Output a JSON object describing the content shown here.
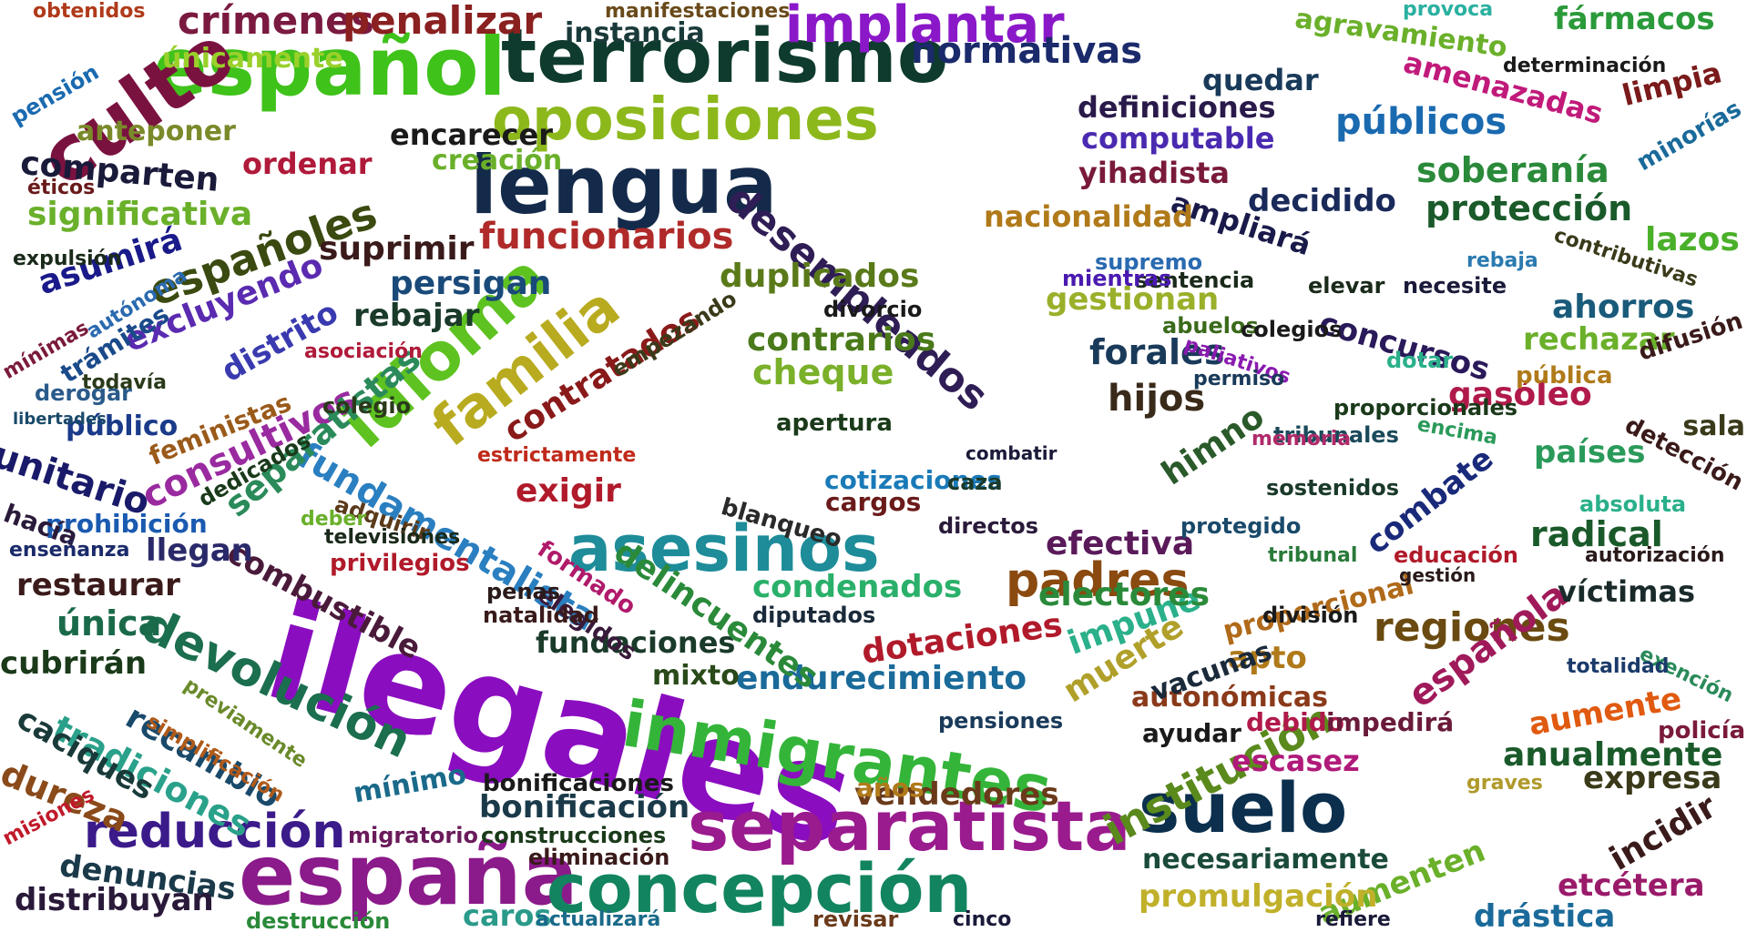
{
  "words": [
    {
      "text": "ilegales",
      "color": "#8a0dbf"
    },
    {
      "text": "terrorismo",
      "color": "#0e3b2e"
    },
    {
      "text": "español",
      "color": "#3fc21a"
    },
    {
      "text": "oposiciones",
      "color": "#8db81c"
    },
    {
      "text": "lengua",
      "color": "#142a4a"
    },
    {
      "text": "separatista",
      "color": "#9a1b8e"
    },
    {
      "text": "españa",
      "color": "#8b1a8a"
    },
    {
      "text": "concepción",
      "color": "#12845f"
    },
    {
      "text": "inmigrantes",
      "color": "#34b53a"
    },
    {
      "text": "asesinos",
      "color": "#1e8c99"
    },
    {
      "text": "suelo",
      "color": "#0b2f4d"
    },
    {
      "text": "culto",
      "color": "#7a1240"
    },
    {
      "text": "idioma",
      "color": "#5ec220"
    },
    {
      "text": "familia",
      "color": "#b8ab20"
    },
    {
      "text": "desempleados",
      "color": "#2f1d55"
    },
    {
      "text": "fundamentalista",
      "color": "#2a7fc0"
    },
    {
      "text": "devolución",
      "color": "#1b6e4e"
    },
    {
      "text": "institución",
      "color": "#5a8a1c"
    },
    {
      "text": "padres",
      "color": "#8a4a10"
    },
    {
      "text": "reducción",
      "color": "#3b1a8a"
    },
    {
      "text": "implantar",
      "color": "#8a18c8"
    },
    {
      "text": "crímenes",
      "color": "#7a1a40"
    },
    {
      "text": "penalizar",
      "color": "#8a2020"
    },
    {
      "text": "normativas",
      "color": "#1a2a6a"
    },
    {
      "text": "funcionarios",
      "color": "#b02a2a"
    },
    {
      "text": "españoles",
      "color": "#3a4a10"
    },
    {
      "text": "contratados",
      "color": "#8a1a1a"
    },
    {
      "text": "inmigrantes",
      "color": "#34b53a"
    },
    {
      "text": "combustible",
      "color": "#4a1a3a"
    },
    {
      "text": "tradiciones",
      "color": "#2aa18a"
    },
    {
      "text": "recambio",
      "color": "#1a4a6a"
    },
    {
      "text": "caciques",
      "color": "#1a3a3a"
    },
    {
      "text": "dureza",
      "color": "#8a4a1a"
    },
    {
      "text": "denuncias",
      "color": "#1a3a4a"
    },
    {
      "text": "distribuyan",
      "color": "#2a1a3a"
    },
    {
      "text": "consultivos",
      "color": "#9a2aa0"
    },
    {
      "text": "unitario",
      "color": "#1a1a6a"
    },
    {
      "text": "separatistas",
      "color": "#2a8a5a"
    },
    {
      "text": "cotizaciones",
      "color": "#1a7ab8"
    },
    {
      "text": "combate",
      "color": "#1a2a7a"
    },
    {
      "text": "regiones",
      "color": "#6a4a10"
    },
    {
      "text": "española",
      "color": "#a01a5a"
    },
    {
      "text": "protección",
      "color": "#1a5a2a"
    },
    {
      "text": "soberanía",
      "color": "#2a8a3a"
    },
    {
      "text": "públicos",
      "color": "#1a6ab0"
    },
    {
      "text": "amenazadas",
      "color": "#c01a7a"
    },
    {
      "text": "fármacos",
      "color": "#2a9a3a"
    },
    {
      "text": "agravamiento",
      "color": "#6ab02a"
    },
    {
      "text": "definiciones",
      "color": "#2a1a4a"
    },
    {
      "text": "computable",
      "color": "#4a2ab0"
    },
    {
      "text": "yihadista",
      "color": "#7a1a3a"
    },
    {
      "text": "ampliará",
      "color": "#1a1a4a"
    },
    {
      "text": "decidido",
      "color": "#1a2a5a"
    },
    {
      "text": "nacionalidad",
      "color": "#b07a1a"
    },
    {
      "text": "gestionan",
      "color": "#9ab02a"
    },
    {
      "text": "concursos",
      "color": "#2a1a5a"
    },
    {
      "text": "rechazar",
      "color": "#6ab02a"
    },
    {
      "text": "ahorros",
      "color": "#1a5a7a"
    },
    {
      "text": "lazos",
      "color": "#4ab02a"
    },
    {
      "text": "gasóleo",
      "color": "#b01a4a"
    },
    {
      "text": "radical",
      "color": "#1a5a2a"
    },
    {
      "text": "víctimas",
      "color": "#1a2a2a"
    },
    {
      "text": "países",
      "color": "#2a9a5a"
    },
    {
      "text": "expresa",
      "color": "#3a3a1a"
    },
    {
      "text": "incidir",
      "color": "#3a1a1a"
    },
    {
      "text": "drástica",
      "color": "#1a6a9a"
    },
    {
      "text": "aumente",
      "color": "#e05a10"
    },
    {
      "text": "anualmente",
      "color": "#1a5a2a"
    },
    {
      "text": "etcétera",
      "color": "#9a1a6a"
    },
    {
      "text": "aumenten",
      "color": "#6ab02a"
    },
    {
      "text": "promulgación",
      "color": "#c0b02a"
    },
    {
      "text": "necesariamente",
      "color": "#1a4a3a"
    },
    {
      "text": "escasez",
      "color": "#b01a7a"
    },
    {
      "text": "autonómicas",
      "color": "#8a3a1a"
    },
    {
      "text": "muerte",
      "color": "#b0a02a"
    },
    {
      "text": "impune",
      "color": "#2ab08a"
    },
    {
      "text": "electores",
      "color": "#2a8a3a"
    },
    {
      "text": "efectiva",
      "color": "#5a1a5a"
    },
    {
      "text": "hijos",
      "color": "#3a2a1a"
    },
    {
      "text": "forales",
      "color": "#1a3a5a"
    },
    {
      "text": "himno",
      "color": "#2a5a2a"
    },
    {
      "text": "dotaciones",
      "color": "#b01a2a"
    },
    {
      "text": "endurecimiento",
      "color": "#1a6a9a"
    },
    {
      "text": "fundaciones",
      "color": "#1a3a2a"
    },
    {
      "text": "condenados",
      "color": "#2ab06a"
    },
    {
      "text": "delincuentes",
      "color": "#2a8a3a"
    },
    {
      "text": "exigir",
      "color": "#b01a2a"
    },
    {
      "text": "cheque",
      "color": "#7ab02a"
    },
    {
      "text": "contrarios",
      "color": "#4a7a1a"
    },
    {
      "text": "duplicados",
      "color": "#5a7a1a"
    },
    {
      "text": "persigan",
      "color": "#1a4a7a"
    },
    {
      "text": "suprimir",
      "color": "#3a1a1a"
    },
    {
      "text": "rebajar",
      "color": "#1a3a2a"
    },
    {
      "text": "excluyendo",
      "color": "#5a2ab0"
    },
    {
      "text": "distrito",
      "color": "#3a3ab0"
    },
    {
      "text": "asumirá",
      "color": "#1a1a8a"
    },
    {
      "text": "significativa",
      "color": "#6ab02a"
    },
    {
      "text": "comparten",
      "color": "#1a1a3a"
    },
    {
      "text": "anteponer",
      "color": "#7a8a2a"
    },
    {
      "text": "únicamente",
      "color": "#9ad02a"
    },
    {
      "text": "ordenar",
      "color": "#b01a3a"
    },
    {
      "text": "creación",
      "color": "#6ab02a"
    },
    {
      "text": "encarecer",
      "color": "#1a1a1a"
    },
    {
      "text": "instancia",
      "color": "#1a3a3a"
    },
    {
      "text": "restaurar",
      "color": "#3a1a1a"
    },
    {
      "text": "única",
      "color": "#1a6a4a"
    },
    {
      "text": "cubrirán",
      "color": "#1a3a1a"
    },
    {
      "text": "llegan",
      "color": "#2a2a6a"
    },
    {
      "text": "prohibición",
      "color": "#1a5ab0"
    },
    {
      "text": "público",
      "color": "#1a3a8a"
    },
    {
      "text": "mínimo",
      "color": "#1a6a8a"
    },
    {
      "text": "bonificación",
      "color": "#1a3a4a"
    },
    {
      "text": "vendedores",
      "color": "#6a3a1a"
    },
    {
      "text": "caros",
      "color": "#2a9a8a"
    },
    {
      "text": "mixto",
      "color": "#2a4a1a"
    },
    {
      "text": "apto",
      "color": "#b07a1a"
    },
    {
      "text": "sostenidos",
      "color": "#1a3a2a"
    },
    {
      "text": "tribunales",
      "color": "#1a4a5a"
    },
    {
      "text": "hacía",
      "color": "#2a1a3a"
    },
    {
      "text": "debido",
      "color": "#b01a4a"
    },
    {
      "text": "impedirá",
      "color": "#6a1a3a"
    },
    {
      "text": "proporcional",
      "color": "#b06a1a"
    },
    {
      "text": "obtenidos",
      "color": "#b03a1a"
    },
    {
      "text": "manifestaciones",
      "color": "#6a4a1a"
    },
    {
      "text": "provoca",
      "color": "#2ab0a0"
    },
    {
      "text": "determinación",
      "color": "#1a1a1a"
    },
    {
      "text": "quedar",
      "color": "#1a3a5a"
    },
    {
      "text": "limpia",
      "color": "#7a1a1a"
    },
    {
      "text": "minorías",
      "color": "#1a6a9a"
    },
    {
      "text": "pensión",
      "color": "#1a6ab0"
    },
    {
      "text": "éticos",
      "color": "#6a1a1a"
    },
    {
      "text": "expulsión",
      "color": "#1a2a1a"
    },
    {
      "text": "mínimas",
      "color": "#7a1a3a"
    },
    {
      "text": "trámites",
      "color": "#1a4a8a"
    },
    {
      "text": "autónoma",
      "color": "#2a6ab0"
    },
    {
      "text": "derogar",
      "color": "#2a5a8a"
    },
    {
      "text": "todavía",
      "color": "#2a3a1a"
    },
    {
      "text": "libertades",
      "color": "#1a4a6a"
    },
    {
      "text": "feministas",
      "color": "#9a5a1a"
    },
    {
      "text": "enseñanza",
      "color": "#1a2a6a"
    },
    {
      "text": "misiones",
      "color": "#c01a2a"
    },
    {
      "text": "destrucción",
      "color": "#2a8a3a"
    },
    {
      "text": "previamente",
      "color": "#6a8a2a"
    },
    {
      "text": "simplificación",
      "color": "#b05a1a"
    },
    {
      "text": "construcciones",
      "color": "#1a3a1a"
    },
    {
      "text": "eliminación",
      "color": "#3a1a1a"
    },
    {
      "text": "migratorio",
      "color": "#6a1a5a"
    },
    {
      "text": "actualizará",
      "color": "#1a6a8a"
    },
    {
      "text": "revisar",
      "color": "#6a3a1a"
    },
    {
      "text": "cinco",
      "color": "#1a1a3a"
    },
    {
      "text": "refiere",
      "color": "#1a1a3a"
    },
    {
      "text": "sala",
      "color": "#3a3a1a"
    },
    {
      "text": "policía",
      "color": "#7a1a3a"
    },
    {
      "text": "absoluta",
      "color": "#2ab08a"
    },
    {
      "text": "contributivas",
      "color": "#3a3a1a"
    },
    {
      "text": "exención",
      "color": "#2a8a5a"
    },
    {
      "text": "totalidad",
      "color": "#1a3a6a"
    },
    {
      "text": "graves",
      "color": "#b09a2a"
    },
    {
      "text": "dotar",
      "color": "#2ab08a"
    },
    {
      "text": "encima",
      "color": "#2a9a5a"
    },
    {
      "text": "privilegios",
      "color": "#b01a2a"
    },
    {
      "text": "adquirir",
      "color": "#5a3a1a"
    },
    {
      "text": "televisiones",
      "color": "#1a2a1a"
    },
    {
      "text": "deber",
      "color": "#6ab02a"
    },
    {
      "text": "dedicados",
      "color": "#1a3a1a"
    },
    {
      "text": "elegidos",
      "color": "#3a1a3a"
    },
    {
      "text": "formado",
      "color": "#b01a6a"
    },
    {
      "text": "natalidad",
      "color": "#3a1a1a"
    },
    {
      "text": "penas",
      "color": "#2a1a1a"
    },
    {
      "text": "diputados",
      "color": "#1a2a3a"
    },
    {
      "text": "blanqueo",
      "color": "#2a2a2a"
    },
    {
      "text": "apertura",
      "color": "#1a3a1a"
    },
    {
      "text": "cargos",
      "color": "#6a1a1a"
    },
    {
      "text": "directos",
      "color": "#2a1a3a"
    },
    {
      "text": "caza",
      "color": "#1a3a2a"
    },
    {
      "text": "divorcio",
      "color": "#1a1a1a"
    },
    {
      "text": "empezando",
      "color": "#3a3a1a"
    },
    {
      "text": "colegio",
      "color": "#2a3a1a"
    },
    {
      "text": "asociación",
      "color": "#b01a3a"
    },
    {
      "text": "estrictamente",
      "color": "#c02a1a"
    },
    {
      "text": "proporcionales",
      "color": "#1a3a1a"
    },
    {
      "text": "sentencia",
      "color": "#1a2a1a"
    },
    {
      "text": "supremo",
      "color": "#2a6ab0"
    },
    {
      "text": "mientras",
      "color": "#4a1ab0"
    },
    {
      "text": "abuelos",
      "color": "#3a6a1a"
    },
    {
      "text": "paliativos",
      "color": "#8a1ab0"
    },
    {
      "text": "permiso",
      "color": "#1a3a5a"
    },
    {
      "text": "colegios",
      "color": "#1a1a1a"
    },
    {
      "text": "memoria",
      "color": "#b02a6a"
    },
    {
      "text": "necesite",
      "color": "#1a1a3a"
    },
    {
      "text": "elevar",
      "color": "#1a2a1a"
    },
    {
      "text": "rebaja",
      "color": "#2a7ab0"
    },
    {
      "text": "pública",
      "color": "#b07a1a"
    },
    {
      "text": "difusión",
      "color": "#3a1a1a"
    },
    {
      "text": "detección",
      "color": "#3a1a1a"
    },
    {
      "text": "autorización",
      "color": "#2a1a1a"
    },
    {
      "text": "educación",
      "color": "#b01a2a"
    },
    {
      "text": "gestión",
      "color": "#2a1a1a"
    },
    {
      "text": "división",
      "color": "#1a1a1a"
    },
    {
      "text": "protegido",
      "color": "#1a4a6a"
    },
    {
      "text": "tribunal",
      "color": "#2a7a3a"
    },
    {
      "text": "vacunas",
      "color": "#1a2a3a"
    },
    {
      "text": "ayudar",
      "color": "#1a1a1a"
    },
    {
      "text": "pensiones",
      "color": "#1a3a5a"
    },
    {
      "text": "años",
      "color": "#b07a1a"
    },
    {
      "text": "bonificaciones",
      "color": "#1a1a1a"
    },
    {
      "text": "combatir",
      "color": "#1a1a3a"
    }
  ]
}
